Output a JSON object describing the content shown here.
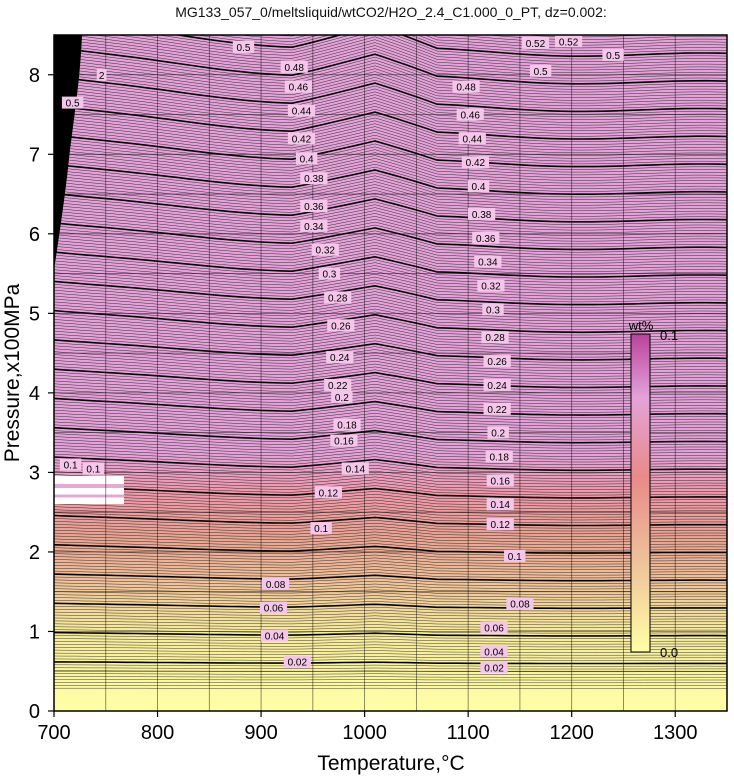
{
  "chart_data": {
    "type": "heatmap",
    "title": "MG133_057_0/meltsliquid/wtCO2/H2O_2.4_C1.000_0_PT, dz=0.002:",
    "xlabel": "Temperature,°C",
    "ylabel": "Pressure,x100MPa",
    "xlim": [
      700,
      1350
    ],
    "ylim": [
      0,
      8.5
    ],
    "x_ticks": [
      700,
      800,
      900,
      1000,
      1100,
      1200,
      1300
    ],
    "y_ticks": [
      0,
      1,
      2,
      3,
      4,
      5,
      6,
      7,
      8
    ],
    "grid": true,
    "contour_interval": 0.002,
    "major_interval": 0.02,
    "colorbar": {
      "label": "wt%",
      "min": 0.0,
      "max": 0.1,
      "min_label": "0.0",
      "max_label": "0.1",
      "colors": [
        "#ffffa6",
        "#eebe9a",
        "#e98a8a",
        "#e3a3d8",
        "#b8429c"
      ]
    },
    "contour_labels": [
      {
        "text": "0.02",
        "x": 935,
        "p": 0.62
      },
      {
        "text": "0.02",
        "x": 1125,
        "p": 0.55
      },
      {
        "text": "0.04",
        "x": 913,
        "p": 0.95
      },
      {
        "text": "0.04",
        "x": 1125,
        "p": 0.75
      },
      {
        "text": "0.06",
        "x": 912,
        "p": 1.3
      },
      {
        "text": "0.06",
        "x": 1125,
        "p": 1.05
      },
      {
        "text": "0.08",
        "x": 914,
        "p": 1.6
      },
      {
        "text": "0.08",
        "x": 1150,
        "p": 1.35
      },
      {
        "text": "0.1",
        "x": 958,
        "p": 2.3
      },
      {
        "text": "0.1",
        "x": 1145,
        "p": 1.95
      },
      {
        "text": "0.1",
        "x": 716,
        "p": 3.1
      },
      {
        "text": "0.1",
        "x": 738,
        "p": 3.05
      },
      {
        "text": "0.12",
        "x": 965,
        "p": 2.75
      },
      {
        "text": "0.12",
        "x": 1131,
        "p": 2.35
      },
      {
        "text": "0.14",
        "x": 1131,
        "p": 2.6
      },
      {
        "text": "0.14",
        "x": 991,
        "p": 3.05
      },
      {
        "text": "0.16",
        "x": 1131,
        "p": 2.9
      },
      {
        "text": "0.16",
        "x": 980,
        "p": 3.4
      },
      {
        "text": "0.18",
        "x": 1130,
        "p": 3.2
      },
      {
        "text": "0.18",
        "x": 983,
        "p": 3.6
      },
      {
        "text": "0.2",
        "x": 1129,
        "p": 3.5
      },
      {
        "text": "0.2",
        "x": 978,
        "p": 3.95
      },
      {
        "text": "0.22",
        "x": 1128,
        "p": 3.8
      },
      {
        "text": "0.22",
        "x": 974,
        "p": 4.1
      },
      {
        "text": "0.24",
        "x": 1128,
        "p": 4.1
      },
      {
        "text": "0.24",
        "x": 976,
        "p": 4.45
      },
      {
        "text": "0.26",
        "x": 1128,
        "p": 4.4
      },
      {
        "text": "0.26",
        "x": 977,
        "p": 4.85
      },
      {
        "text": "0.28",
        "x": 1126,
        "p": 4.7
      },
      {
        "text": "0.28",
        "x": 974,
        "p": 5.2
      },
      {
        "text": "0.3",
        "x": 1124,
        "p": 5.05
      },
      {
        "text": "0.3",
        "x": 966,
        "p": 5.5
      },
      {
        "text": "0.32",
        "x": 1122,
        "p": 5.35
      },
      {
        "text": "0.32",
        "x": 962,
        "p": 5.8
      },
      {
        "text": "0.34",
        "x": 1119,
        "p": 5.65
      },
      {
        "text": "0.34",
        "x": 951,
        "p": 6.1
      },
      {
        "text": "0.36",
        "x": 1117,
        "p": 5.95
      },
      {
        "text": "0.36",
        "x": 951,
        "p": 6.35
      },
      {
        "text": "0.38",
        "x": 1113,
        "p": 6.25
      },
      {
        "text": "0.38",
        "x": 951,
        "p": 6.7
      },
      {
        "text": "0.4",
        "x": 1110,
        "p": 6.6
      },
      {
        "text": "0.4",
        "x": 944,
        "p": 6.95
      },
      {
        "text": "0.42",
        "x": 1107,
        "p": 6.9
      },
      {
        "text": "0.42",
        "x": 939,
        "p": 7.2
      },
      {
        "text": "0.44",
        "x": 1104,
        "p": 7.2
      },
      {
        "text": "0.44",
        "x": 939,
        "p": 7.55
      },
      {
        "text": "0.46",
        "x": 1102,
        "p": 7.5
      },
      {
        "text": "0.46",
        "x": 936,
        "p": 7.85
      },
      {
        "text": "0.48",
        "x": 1098,
        "p": 7.85
      },
      {
        "text": "0.48",
        "x": 932,
        "p": 8.1
      },
      {
        "text": "0.5",
        "x": 1240,
        "p": 8.25
      },
      {
        "text": "0.5",
        "x": 883,
        "p": 8.35
      },
      {
        "text": "0.5",
        "x": 718,
        "p": 7.65
      },
      {
        "text": "0.5",
        "x": 1170,
        "p": 8.05
      },
      {
        "text": "0.52",
        "x": 1165,
        "p": 8.4
      },
      {
        "text": "0.52",
        "x": 1197,
        "p": 8.42
      },
      {
        "text": "2",
        "x": 746,
        "p": 8.0
      }
    ]
  }
}
